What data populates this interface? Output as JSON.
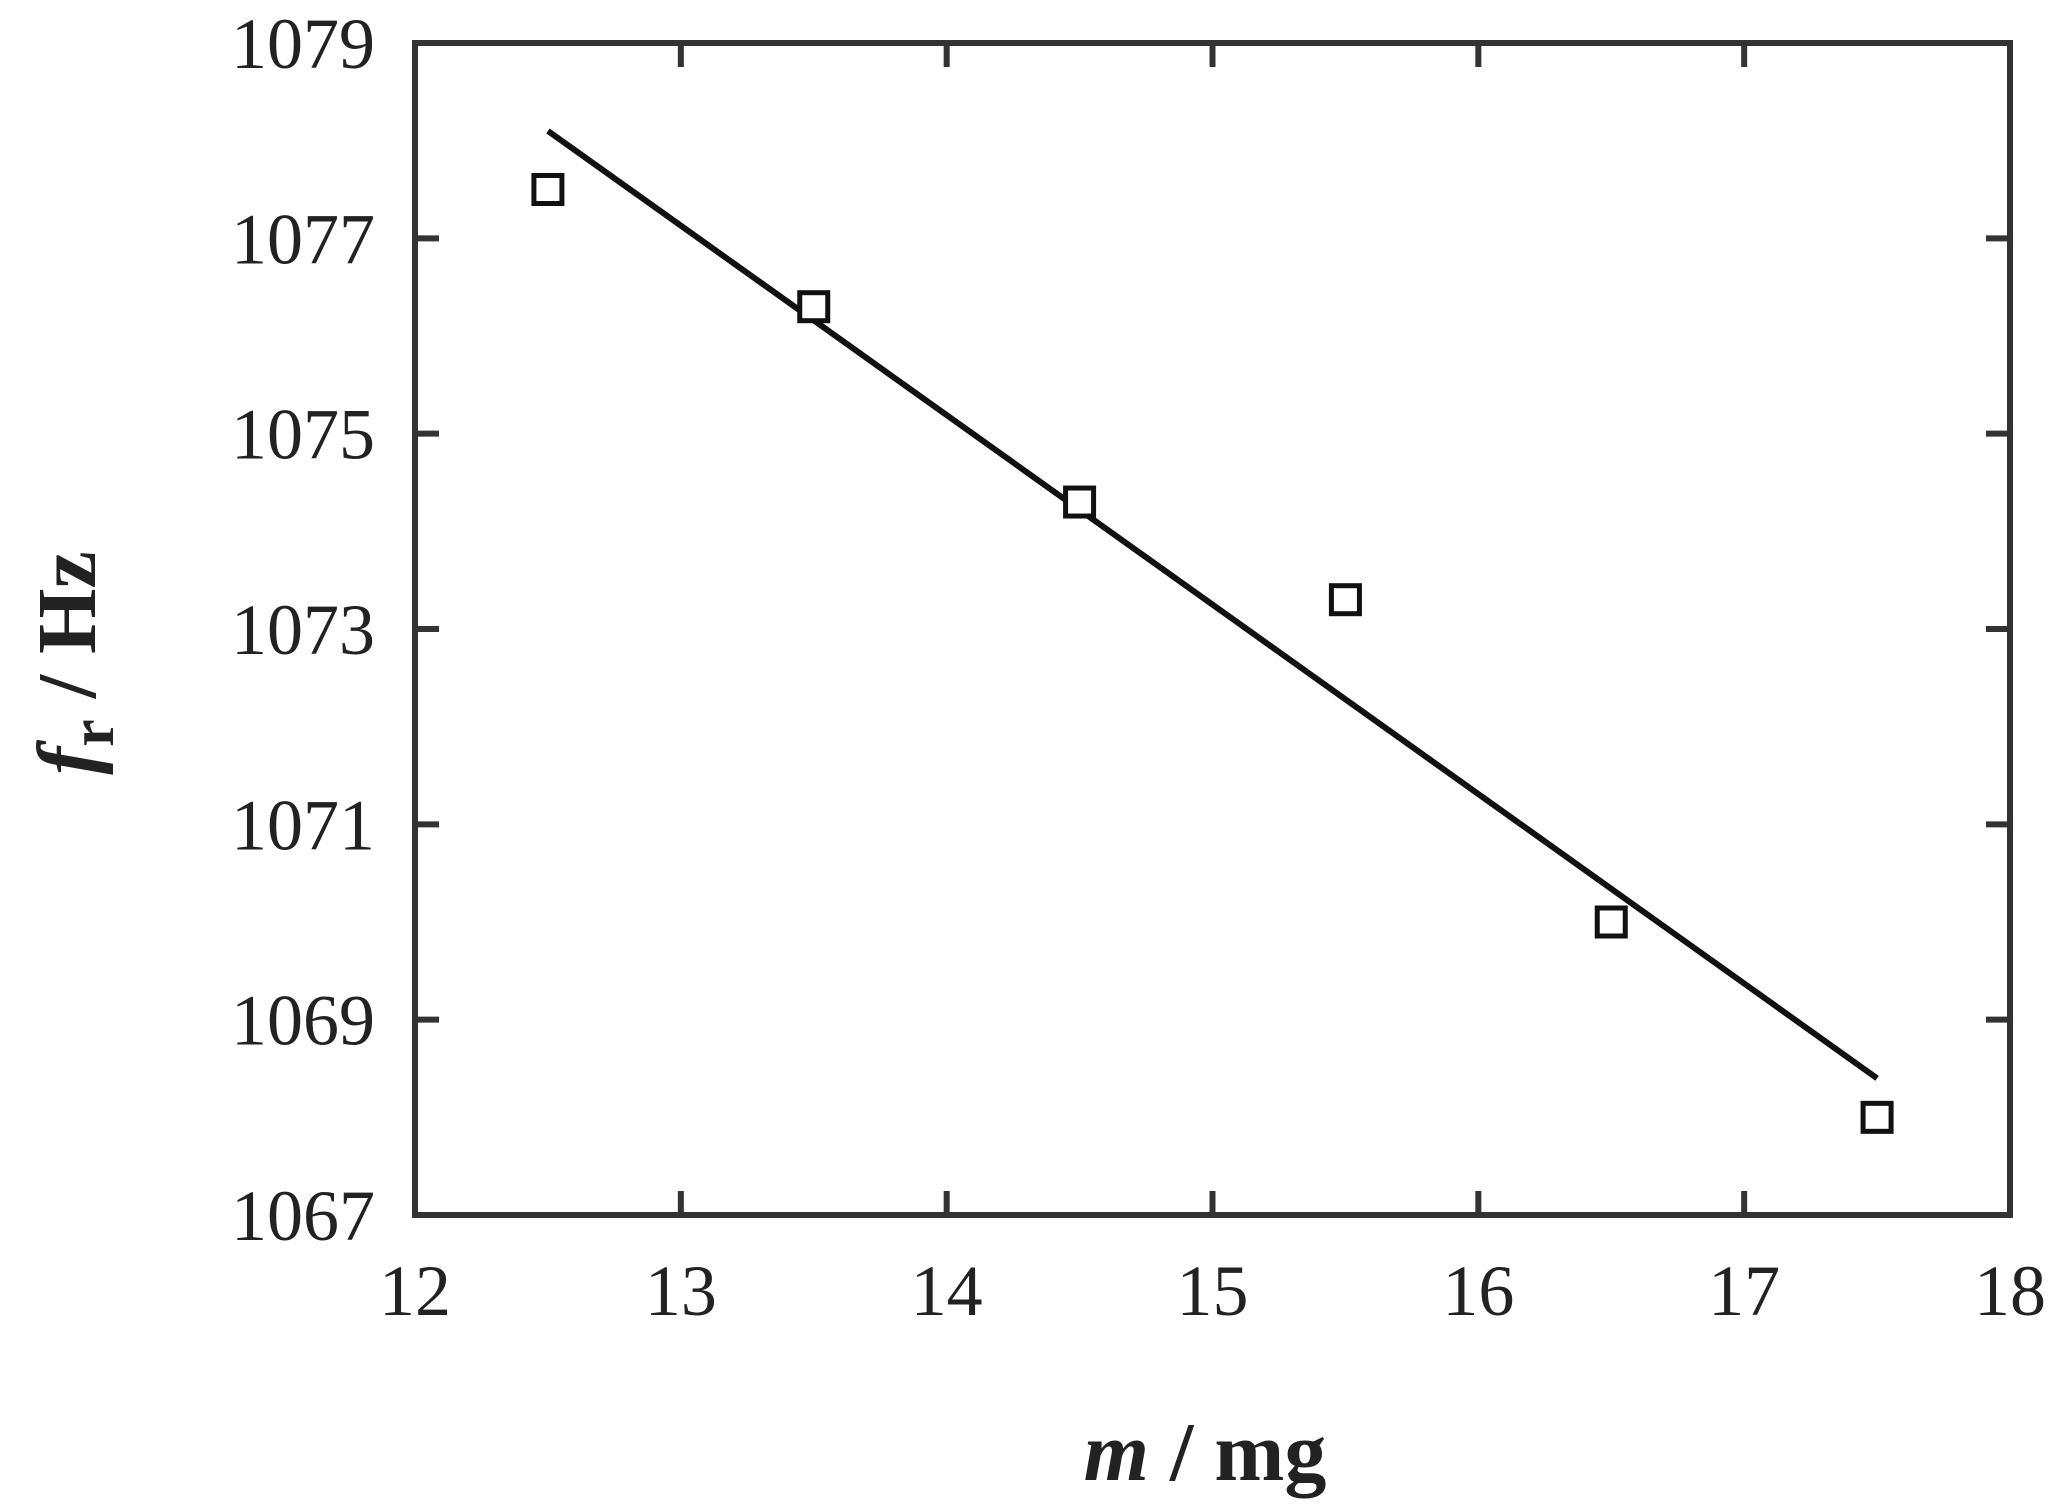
{
  "chart_data": {
    "type": "scatter",
    "xlabel": {
      "var": "m",
      "unit": " / mg"
    },
    "ylabel": {
      "var": "f",
      "sub": "r",
      "unit": " / Hz"
    },
    "xlim": [
      12,
      18
    ],
    "ylim": [
      1067,
      1079
    ],
    "xticks": [
      12,
      13,
      14,
      15,
      16,
      17,
      18
    ],
    "yticks": [
      1067,
      1069,
      1071,
      1073,
      1075,
      1077,
      1079
    ],
    "grid": false,
    "series": [
      {
        "marker": "square-open",
        "x": [
          12.5,
          13.5,
          14.5,
          15.5,
          16.5,
          17.5
        ],
        "y": [
          1077.5,
          1076.3,
          1074.3,
          1073.3,
          1070.0,
          1068.0
        ]
      }
    ],
    "fit_line": {
      "x": [
        12.5,
        17.5
      ],
      "y": [
        1078.1,
        1068.4
      ]
    },
    "colors": {
      "axis": "#333333",
      "line": "#111111",
      "marker": "#111111",
      "background": "#ffffff"
    }
  }
}
